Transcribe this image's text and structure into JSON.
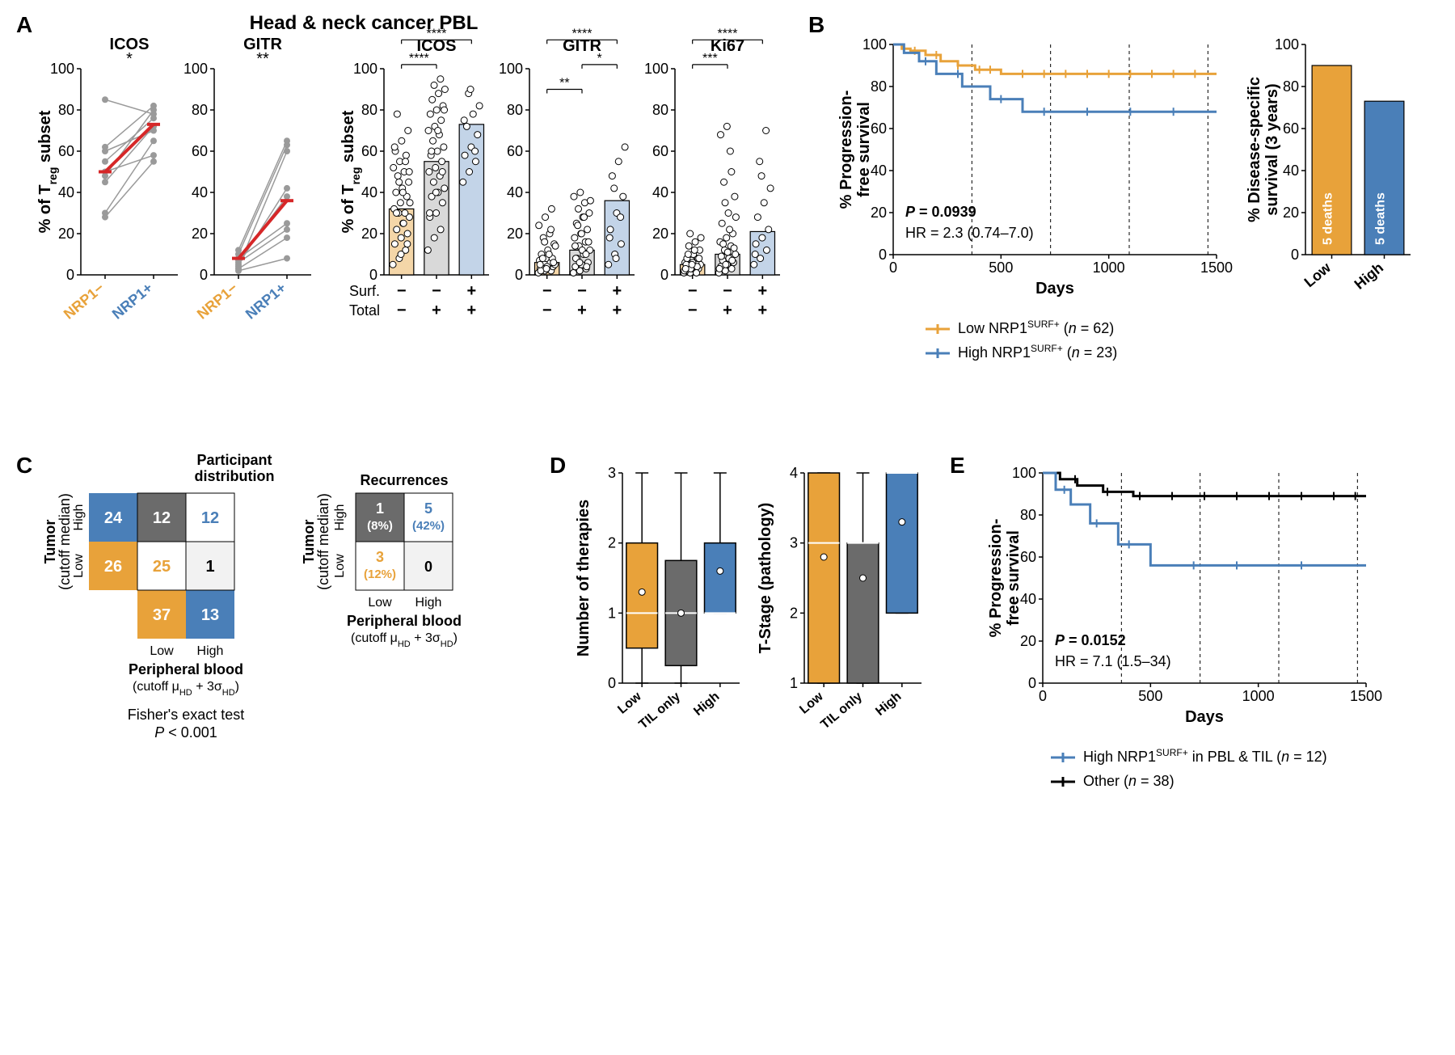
{
  "colors": {
    "orange": "#e8a23a",
    "blue": "#4a7fb8",
    "darkblue": "#3667a0",
    "gray_bar": "#808080",
    "light_orange_fill": "#f4d6a8",
    "light_gray_fill": "#d9d9d9",
    "light_blue_fill": "#c3d4e8",
    "red_line": "#d62728",
    "black": "#000000",
    "dark_gray_box": "#6b6b6b",
    "light_box": "#f2f2f2",
    "grid": "#cccccc",
    "point_gray": "#9a9a9a"
  },
  "panelA": {
    "label": "A",
    "main_title": "Head & neck cancer PBL",
    "y_label": "% of T_reg subset",
    "ylim": [
      0,
      100
    ],
    "ytick_step": 20,
    "paired": {
      "plots": [
        {
          "title": "ICOS",
          "sig": "*",
          "pairs": [
            [
              48,
              80
            ],
            [
              62,
              82
            ],
            [
              85,
              78
            ],
            [
              30,
              65
            ],
            [
              55,
              76
            ],
            [
              28,
              55
            ],
            [
              50,
              58
            ],
            [
              60,
              70
            ],
            [
              45,
              72
            ]
          ],
          "mean": [
            50,
            73
          ]
        },
        {
          "title": "GITR",
          "sig": "**",
          "pairs": [
            [
              5,
              42
            ],
            [
              3,
              18
            ],
            [
              10,
              63
            ],
            [
              2,
              8
            ],
            [
              8,
              25
            ],
            [
              4,
              60
            ],
            [
              6,
              22
            ],
            [
              12,
              65
            ],
            [
              7,
              38
            ]
          ],
          "mean": [
            8,
            36
          ]
        }
      ],
      "x_labels": [
        "NRP1−",
        "NRP1+"
      ],
      "x_colors": [
        "#e8a23a",
        "#4a7fb8"
      ]
    },
    "scatter": {
      "plots": [
        {
          "title": "ICOS",
          "bars": [
            32,
            55,
            73
          ],
          "points": [
            [
              5,
              8,
              12,
              15,
              18,
              20,
              22,
              25,
              28,
              30,
              30,
              32,
              35,
              38,
              40,
              42,
              45,
              48,
              50,
              52,
              55,
              58,
              60,
              65,
              70,
              78,
              25,
              35,
              45,
              55,
              62,
              10,
              15,
              30,
              40,
              50
            ],
            [
              12,
              18,
              22,
              28,
              30,
              35,
              38,
              40,
              42,
              45,
              48,
              50,
              52,
              55,
              58,
              60,
              62,
              65,
              68,
              70,
              72,
              75,
              78,
              80,
              82,
              85,
              88,
              90,
              92,
              95,
              30,
              40,
              50,
              60,
              70,
              80
            ],
            [
              45,
              50,
              55,
              58,
              62,
              68,
              72,
              78,
              82,
              88,
              60,
              75,
              90
            ]
          ],
          "sig_lines": [
            {
              "from": 0,
              "to": 1,
              "label": "****",
              "y": 102
            },
            {
              "from": 0,
              "to": 2,
              "label": "****",
              "y": 114
            }
          ]
        },
        {
          "title": "GITR",
          "bars": [
            6,
            12,
            36
          ],
          "points": [
            [
              1,
              2,
              2,
              3,
              3,
              4,
              4,
              5,
              5,
              6,
              6,
              7,
              8,
              8,
              10,
              12,
              15,
              18,
              20,
              24,
              28,
              32,
              2,
              4,
              6,
              8,
              10,
              14,
              16,
              22,
              5,
              3
            ],
            [
              1,
              2,
              3,
              4,
              5,
              6,
              8,
              10,
              12,
              14,
              16,
              18,
              20,
              22,
              25,
              28,
              30,
              32,
              35,
              38,
              40,
              4,
              8,
              12,
              16,
              24,
              28,
              36,
              6,
              10,
              14,
              20
            ],
            [
              5,
              10,
              15,
              22,
              30,
              38,
              48,
              55,
              62,
              42,
              28,
              18,
              8
            ]
          ],
          "sig_lines": [
            {
              "from": 0,
              "to": 1,
              "label": "**",
              "y": 90
            },
            {
              "from": 1,
              "to": 2,
              "label": "*",
              "y": 102
            },
            {
              "from": 0,
              "to": 2,
              "label": "****",
              "y": 114
            }
          ]
        },
        {
          "title": "Ki67",
          "bars": [
            5,
            10,
            21
          ],
          "points": [
            [
              1,
              1,
              2,
              2,
              3,
              3,
              4,
              4,
              5,
              5,
              6,
              6,
              7,
              8,
              8,
              10,
              12,
              14,
              16,
              2,
              3,
              4,
              5,
              6,
              8,
              10,
              12,
              18,
              20,
              1,
              3,
              5
            ],
            [
              1,
              2,
              3,
              4,
              5,
              6,
              7,
              8,
              10,
              12,
              14,
              16,
              18,
              20,
              25,
              30,
              38,
              45,
              60,
              3,
              5,
              7,
              9,
              11,
              13,
              15,
              22,
              28,
              35,
              50,
              68,
              72
            ],
            [
              5,
              8,
              12,
              15,
              18,
              22,
              28,
              35,
              42,
              55,
              70,
              10,
              48
            ]
          ],
          "sig_lines": [
            {
              "from": 0,
              "to": 1,
              "label": "***",
              "y": 102
            },
            {
              "from": 0,
              "to": 2,
              "label": "****",
              "y": 114
            }
          ]
        }
      ],
      "row_labels": [
        "Surf.",
        "Total"
      ],
      "row_values": [
        [
          "−",
          "−",
          "+"
        ],
        [
          "−",
          "+",
          "+"
        ]
      ]
    }
  },
  "panelB": {
    "label": "B",
    "km": {
      "y_label": "% Progression-\nfree survival",
      "x_label": "Days",
      "xlim": [
        0,
        1500
      ],
      "xtick_step": 500,
      "ylim": [
        0,
        100
      ],
      "ytick_step": 20,
      "vlines": [
        365,
        730,
        1095,
        1460
      ],
      "series": [
        {
          "name": "Low NRP1",
          "color": "#e8a23a",
          "steps": [
            [
              0,
              100
            ],
            [
              40,
              100
            ],
            [
              40,
              98
            ],
            [
              80,
              98
            ],
            [
              80,
              97
            ],
            [
              150,
              97
            ],
            [
              150,
              95
            ],
            [
              220,
              95
            ],
            [
              220,
              92
            ],
            [
              300,
              92
            ],
            [
              300,
              90
            ],
            [
              380,
              90
            ],
            [
              380,
              88
            ],
            [
              500,
              88
            ],
            [
              500,
              86
            ],
            [
              700,
              86
            ],
            [
              1500,
              86
            ]
          ],
          "ticks": [
            100,
            200,
            300,
            400,
            450,
            600,
            700,
            800,
            900,
            1000,
            1100,
            1200,
            1300,
            1400
          ]
        },
        {
          "name": "High NRP1",
          "color": "#4a7fb8",
          "steps": [
            [
              0,
              100
            ],
            [
              50,
              100
            ],
            [
              50,
              96
            ],
            [
              120,
              96
            ],
            [
              120,
              92
            ],
            [
              200,
              92
            ],
            [
              200,
              86
            ],
            [
              320,
              86
            ],
            [
              320,
              80
            ],
            [
              450,
              80
            ],
            [
              450,
              74
            ],
            [
              600,
              74
            ],
            [
              600,
              68
            ],
            [
              1500,
              68
            ]
          ],
          "ticks": [
            150,
            300,
            500,
            700,
            900,
            1100,
            1300
          ]
        }
      ],
      "stat1": "P = 0.0939",
      "stat2": "HR = 2.3 (0.74–7.0)",
      "legend": [
        {
          "text_prefix": "Low NRP1",
          "text_sup": "SURF+",
          "n": "(n = 62)",
          "color": "#e8a23a"
        },
        {
          "text_prefix": "High NRP1",
          "text_sup": "SURF+",
          "n": "(n = 23)",
          "color": "#4a7fb8"
        }
      ]
    },
    "bar": {
      "y_label": "% Disease-specific\nsurvival (3 years)",
      "ylim": [
        0,
        100
      ],
      "ytick_step": 20,
      "bars": [
        {
          "label": "Low",
          "value": 90,
          "color": "#e8a23a",
          "inside": "5 deaths"
        },
        {
          "label": "High",
          "value": 73,
          "color": "#4a7fb8",
          "inside": "5 deaths"
        }
      ]
    }
  },
  "panelC": {
    "label": "C",
    "left": {
      "title": "Participant\ndistribution",
      "y_axis": "Tumor\n(cutoff median)",
      "x_axis": "Peripheral blood\n(cutoff μ_HD + 3σ_HD)",
      "y_cats": [
        "High",
        "Low"
      ],
      "x_cats": [
        "Low",
        "High"
      ],
      "row_totals": [
        24,
        26
      ],
      "col_totals": [
        37,
        13
      ],
      "cells": [
        [
          {
            "value": "12",
            "fill": "#6b6b6b",
            "text_color": "#ffffff"
          },
          {
            "value": "12",
            "fill": "#ffffff",
            "text_color": "#4a7fb8"
          }
        ],
        [
          {
            "value": "25",
            "fill": "#ffffff",
            "text_color": "#e8a23a"
          },
          {
            "value": "1",
            "fill": "#f2f2f2",
            "text_color": "#000000"
          }
        ]
      ],
      "footer1": "Fisher's exact test",
      "footer2": "P < 0.001"
    },
    "right": {
      "title": "Recurrences",
      "cells": [
        [
          {
            "line1": "1",
            "line2": "(8%)",
            "fill": "#6b6b6b",
            "text_color": "#ffffff"
          },
          {
            "line1": "5",
            "line2": "(42%)",
            "fill": "#ffffff",
            "text_color": "#4a7fb8"
          }
        ],
        [
          {
            "line1": "3",
            "line2": "(12%)",
            "fill": "#ffffff",
            "text_color": "#e8a23a"
          },
          {
            "line1": "0",
            "line2": "",
            "fill": "#f2f2f2",
            "text_color": "#000000"
          }
        ]
      ],
      "x_cats": [
        "Low",
        "High"
      ],
      "x_axis": "Peripheral blood\n(cutoff μ_HD + 3σ_HD)"
    }
  },
  "panelD": {
    "label": "D",
    "plots": [
      {
        "y_label": "Number of therapies",
        "ylim": [
          0,
          3
        ],
        "yticks": [
          0,
          1,
          2,
          3
        ],
        "boxes": [
          {
            "label": "Low",
            "color": "#e8a23a",
            "q1": 0.5,
            "med": 1,
            "q3": 2,
            "lo": 0,
            "hi": 3,
            "mean": 1.3
          },
          {
            "label": "TIL only",
            "color": "#6b6b6b",
            "q1": 0.25,
            "med": 1,
            "q3": 1.75,
            "lo": 0,
            "hi": 3,
            "mean": 1.0
          },
          {
            "label": "High",
            "color": "#4a7fb8",
            "q1": 1,
            "med": 1,
            "q3": 2,
            "lo": 1,
            "hi": 3,
            "mean": 1.6
          }
        ]
      },
      {
        "y_label": "T-Stage (pathology)",
        "ylim": [
          1,
          4
        ],
        "yticks": [
          1,
          2,
          3,
          4
        ],
        "boxes": [
          {
            "label": "Low",
            "color": "#e8a23a",
            "q1": 1,
            "med": 3,
            "q3": 4,
            "lo": 1,
            "hi": 4,
            "mean": 2.8
          },
          {
            "label": "TIL only",
            "color": "#6b6b6b",
            "q1": 1,
            "med": 3,
            "q3": 3,
            "lo": 1,
            "hi": 4,
            "mean": 2.5
          },
          {
            "label": "High",
            "color": "#4a7fb8",
            "q1": 2,
            "med": 4,
            "q3": 4,
            "lo": 2,
            "hi": 4,
            "mean": 3.3
          }
        ]
      }
    ]
  },
  "panelE": {
    "label": "E",
    "km": {
      "y_label": "% Progression-\nfree survival",
      "x_label": "Days",
      "xlim": [
        0,
        1500
      ],
      "xtick_step": 500,
      "ylim": [
        0,
        100
      ],
      "ytick_step": 20,
      "vlines": [
        365,
        730,
        1095,
        1460
      ],
      "series": [
        {
          "name": "Other",
          "color": "#000000",
          "steps": [
            [
              0,
              100
            ],
            [
              80,
              100
            ],
            [
              80,
              97
            ],
            [
              160,
              97
            ],
            [
              160,
              94
            ],
            [
              280,
              94
            ],
            [
              280,
              91
            ],
            [
              420,
              91
            ],
            [
              420,
              89
            ],
            [
              1500,
              89
            ]
          ],
          "ticks": [
            150,
            300,
            450,
            600,
            750,
            900,
            1050,
            1200,
            1350,
            1450
          ]
        },
        {
          "name": "High",
          "color": "#4a7fb8",
          "steps": [
            [
              0,
              100
            ],
            [
              60,
              100
            ],
            [
              60,
              92
            ],
            [
              130,
              92
            ],
            [
              130,
              85
            ],
            [
              220,
              85
            ],
            [
              220,
              76
            ],
            [
              350,
              76
            ],
            [
              350,
              66
            ],
            [
              500,
              66
            ],
            [
              500,
              56
            ],
            [
              1500,
              56
            ]
          ],
          "ticks": [
            100,
            250,
            400,
            700,
            900,
            1200
          ]
        }
      ],
      "stat1": "P = 0.0152",
      "stat2": "HR = 7.1 (1.5–34)",
      "legend": [
        {
          "text_prefix": "High NRP1",
          "text_sup": "SURF+",
          "rest": " in PBL & TIL (n = 12)",
          "color": "#4a7fb8"
        },
        {
          "text_prefix": "Other (",
          "text_sup": "",
          "rest": "n = 38)",
          "color": "#000000",
          "italic_n": true
        }
      ]
    }
  }
}
